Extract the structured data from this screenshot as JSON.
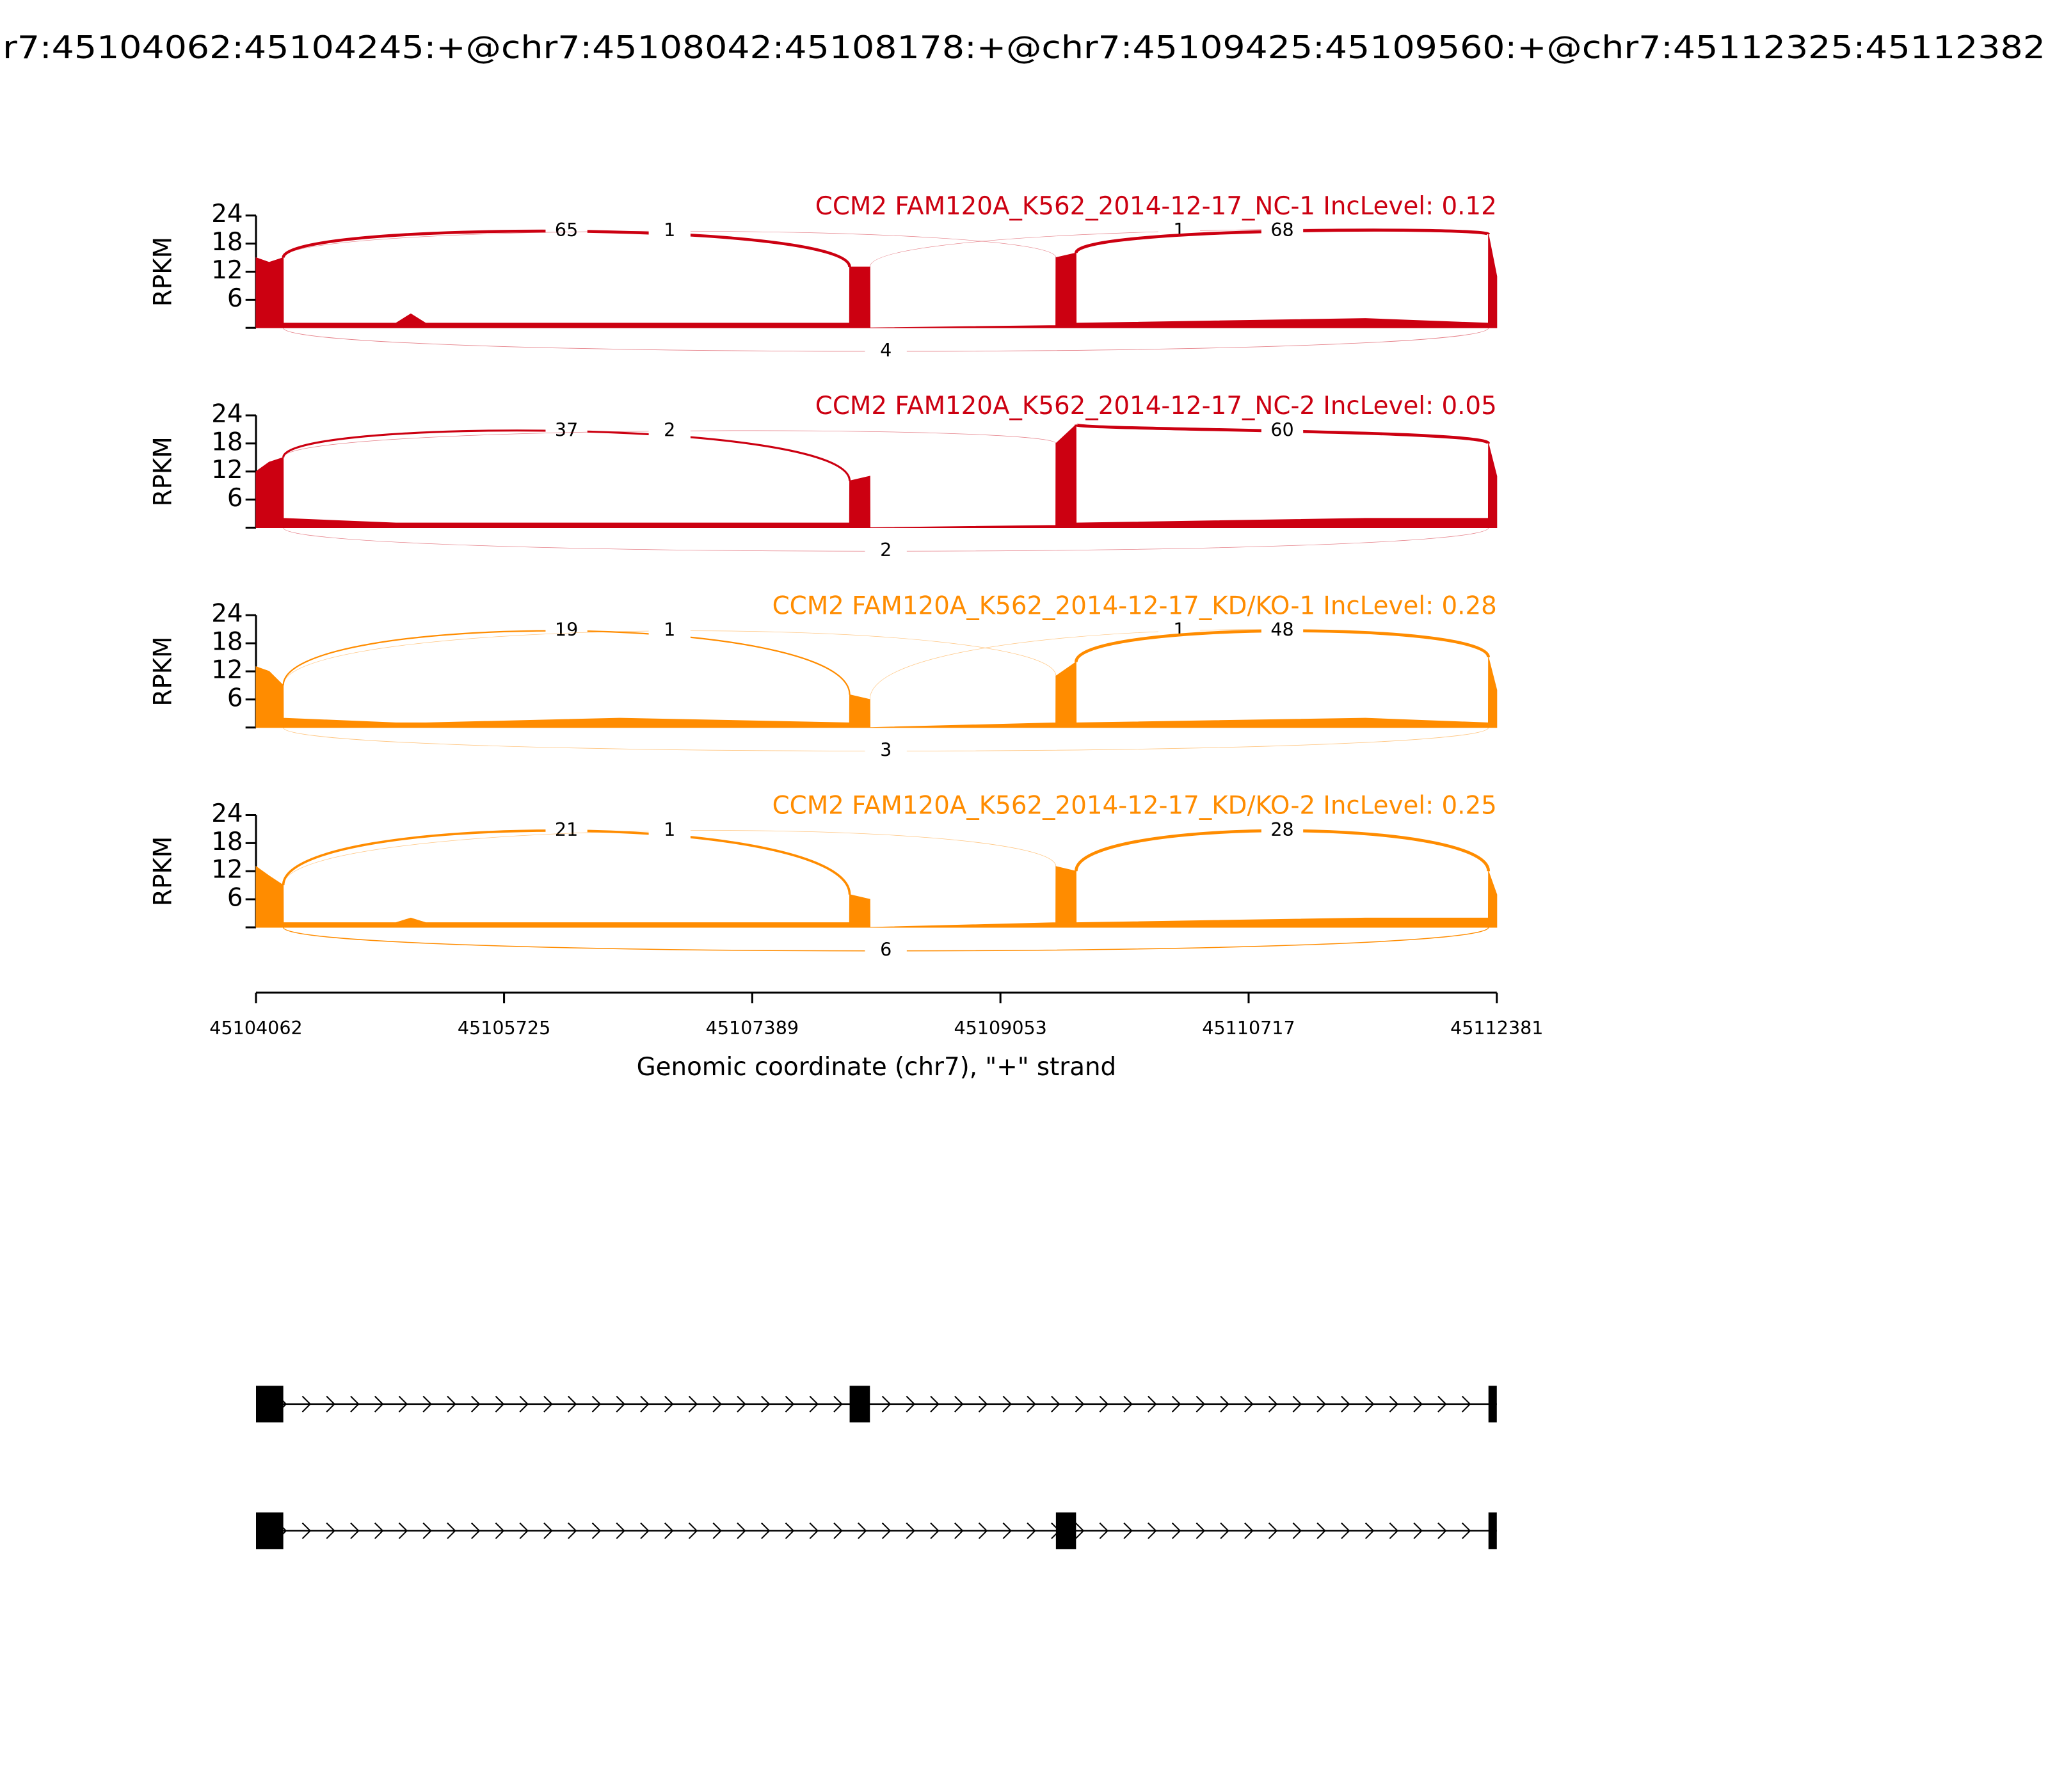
{
  "title": "r7:45104062:45104245:+@chr7:45108042:45108178:+@chr7:45109425:45109560:+@chr7:45112325:45112382",
  "chart_data": [
    {
      "type": "sashimi",
      "title": "CCM2 FAM120A_K562_2014-12-17_NC-1 IncLevel: 0.12",
      "color": "#cc0011",
      "ylabel": "RPKM",
      "xlim": [
        45104062,
        45112381
      ],
      "ylim": [
        0,
        24
      ],
      "yticks": [
        6,
        12,
        18,
        24
      ],
      "coverage": {
        "x": [
          45104062,
          45104150,
          45104245,
          45104246,
          45105000,
          45105100,
          45105200,
          45106500,
          45108041,
          45108042,
          45108178,
          45108179,
          45109424,
          45109425,
          45109560,
          45109561,
          45111500,
          45112324,
          45112325,
          45112381
        ],
        "values": [
          15,
          14,
          15,
          1,
          1,
          3,
          1,
          1,
          1,
          13,
          13,
          0,
          0.5,
          15,
          16,
          1,
          2,
          1,
          20,
          11
        ]
      },
      "junctions": [
        {
          "start": 45104245,
          "end": 45108042,
          "count": 65,
          "side": "above"
        },
        {
          "start": 45104245,
          "end": 45109425,
          "count": 1,
          "side": "above"
        },
        {
          "start": 45108178,
          "end": 45112325,
          "count": 1,
          "side": "above"
        },
        {
          "start": 45109560,
          "end": 45112325,
          "count": 68,
          "side": "above"
        },
        {
          "start": 45104245,
          "end": 45112325,
          "count": 4,
          "side": "below"
        }
      ]
    },
    {
      "type": "sashimi",
      "title": "CCM2 FAM120A_K562_2014-12-17_NC-2 IncLevel: 0.05",
      "color": "#cc0011",
      "ylabel": "RPKM",
      "xlim": [
        45104062,
        45112381
      ],
      "ylim": [
        0,
        24
      ],
      "yticks": [
        6,
        12,
        18,
        24
      ],
      "coverage": {
        "x": [
          45104062,
          45104150,
          45104245,
          45104246,
          45105000,
          45105100,
          45105200,
          45106500,
          45108041,
          45108042,
          45108178,
          45108179,
          45109424,
          45109425,
          45109560,
          45109561,
          45111500,
          45112324,
          45112325,
          45112381
        ],
        "values": [
          12,
          14,
          15,
          2,
          1,
          1,
          1,
          1,
          1,
          10,
          11,
          0,
          0.5,
          18,
          22,
          1,
          2,
          2,
          18,
          11
        ]
      },
      "junctions": [
        {
          "start": 45104245,
          "end": 45108042,
          "count": 37,
          "side": "above"
        },
        {
          "start": 45104245,
          "end": 45109425,
          "count": 2,
          "side": "above"
        },
        {
          "start": 45109560,
          "end": 45112325,
          "count": 60,
          "side": "above"
        },
        {
          "start": 45104245,
          "end": 45112325,
          "count": 2,
          "side": "below"
        }
      ]
    },
    {
      "type": "sashimi",
      "title": "CCM2 FAM120A_K562_2014-12-17_KD/KO-1 IncLevel: 0.28",
      "color": "#ff8c00",
      "ylabel": "RPKM",
      "xlim": [
        45104062,
        45112381
      ],
      "ylim": [
        0,
        24
      ],
      "yticks": [
        6,
        12,
        18,
        24
      ],
      "coverage": {
        "x": [
          45104062,
          45104150,
          45104245,
          45104246,
          45105000,
          45105100,
          45105200,
          45106500,
          45108041,
          45108042,
          45108178,
          45108179,
          45109424,
          45109425,
          45109560,
          45109561,
          45111500,
          45112324,
          45112325,
          45112381
        ],
        "values": [
          13,
          12,
          9,
          2,
          1,
          1,
          1,
          2,
          1,
          7,
          6,
          0,
          1,
          11,
          14,
          1,
          2,
          1,
          15,
          8
        ]
      },
      "junctions": [
        {
          "start": 45104245,
          "end": 45108042,
          "count": 19,
          "side": "above"
        },
        {
          "start": 45104245,
          "end": 45109425,
          "count": 1,
          "side": "above"
        },
        {
          "start": 45108178,
          "end": 45112325,
          "count": 1,
          "side": "above"
        },
        {
          "start": 45109560,
          "end": 45112325,
          "count": 48,
          "side": "above"
        },
        {
          "start": 45104245,
          "end": 45112325,
          "count": 3,
          "side": "below"
        }
      ]
    },
    {
      "type": "sashimi",
      "title": "CCM2 FAM120A_K562_2014-12-17_KD/KO-2 IncLevel: 0.25",
      "color": "#ff8c00",
      "ylabel": "RPKM",
      "xlim": [
        45104062,
        45112381
      ],
      "ylim": [
        0,
        24
      ],
      "yticks": [
        6,
        12,
        18,
        24
      ],
      "xticks": [
        45104062,
        45105725,
        45107389,
        45109053,
        45110717,
        45112381
      ],
      "xlabel": "Genomic coordinate (chr7), \"+\" strand",
      "coverage": {
        "x": [
          45104062,
          45104150,
          45104245,
          45104246,
          45105000,
          45105100,
          45105200,
          45106500,
          45108041,
          45108042,
          45108178,
          45108179,
          45109424,
          45109425,
          45109560,
          45109561,
          45111500,
          45112324,
          45112325,
          45112381
        ],
        "values": [
          13,
          11,
          9,
          1,
          1,
          2,
          1,
          1,
          1,
          7,
          6,
          0,
          1,
          13,
          12,
          1,
          2,
          2,
          12,
          7
        ]
      },
      "junctions": [
        {
          "start": 45104245,
          "end": 45108042,
          "count": 21,
          "side": "above"
        },
        {
          "start": 45104245,
          "end": 45109425,
          "count": 1,
          "side": "above"
        },
        {
          "start": 45109560,
          "end": 45112325,
          "count": 28,
          "side": "above"
        },
        {
          "start": 45104245,
          "end": 45112325,
          "count": 6,
          "side": "below"
        }
      ]
    }
  ],
  "isoforms": [
    {
      "exons": [
        [
          45104062,
          45104245
        ],
        [
          45108042,
          45108178
        ],
        [
          45112325,
          45112381
        ]
      ]
    },
    {
      "exons": [
        [
          45104062,
          45104245
        ],
        [
          45109425,
          45109560
        ],
        [
          45112325,
          45112381
        ]
      ]
    }
  ]
}
